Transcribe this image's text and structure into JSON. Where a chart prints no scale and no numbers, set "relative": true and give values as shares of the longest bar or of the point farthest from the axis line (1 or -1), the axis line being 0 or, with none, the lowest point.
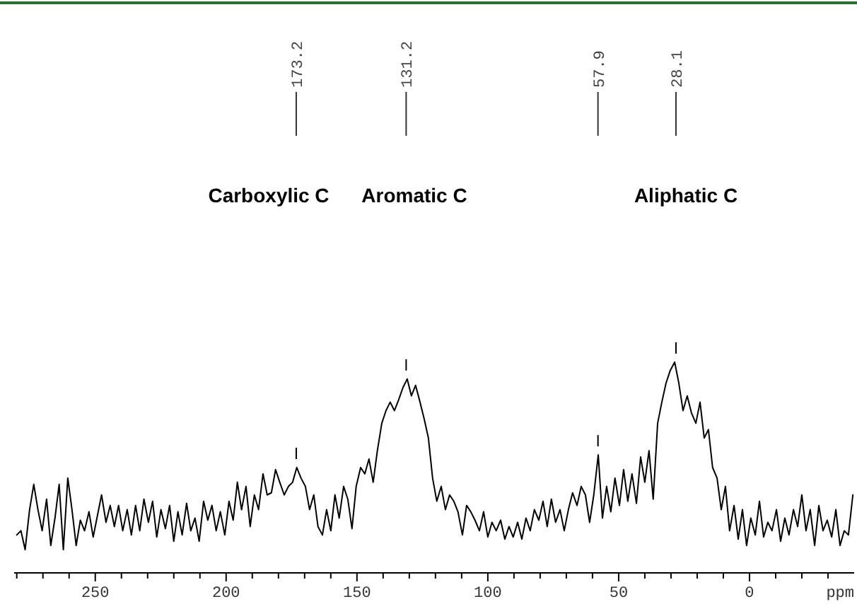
{
  "chart_data": {
    "type": "line",
    "relative": true,
    "xlabel": "ppm",
    "xlim": [
      281,
      -40
    ],
    "xticks": [
      {
        "value": 280,
        "label": null
      },
      {
        "value": 270,
        "label": null
      },
      {
        "value": 260,
        "label": null
      },
      250,
      {
        "value": 240,
        "label": null
      },
      {
        "value": 230,
        "label": null
      },
      {
        "value": 220,
        "label": null
      },
      {
        "value": 210,
        "label": null
      },
      200,
      {
        "value": 190,
        "label": null
      },
      {
        "value": 180,
        "label": null
      },
      {
        "value": 170,
        "label": null
      },
      {
        "value": 160,
        "label": null
      },
      150,
      {
        "value": 140,
        "label": null
      },
      {
        "value": 130,
        "label": null
      },
      {
        "value": 120,
        "label": null
      },
      {
        "value": 110,
        "label": null
      },
      100,
      {
        "value": 90,
        "label": null
      },
      {
        "value": 80,
        "label": null
      },
      {
        "value": 70,
        "label": null
      },
      {
        "value": 60,
        "label": null
      },
      50,
      {
        "value": 40,
        "label": null
      },
      {
        "value": 30,
        "label": null
      },
      {
        "value": 20,
        "label": null
      },
      {
        "value": 10,
        "label": null
      },
      0,
      {
        "value": -10,
        "label": null
      },
      {
        "value": -20,
        "label": null
      },
      {
        "value": -30,
        "label": null
      }
    ],
    "ref_lines": [
      {
        "axis": "x",
        "value": 173.2,
        "label": "173.2"
      },
      {
        "axis": "x",
        "value": 131.2,
        "label": "131.2"
      },
      {
        "axis": "x",
        "value": 57.9,
        "label": "57.9"
      },
      {
        "axis": "x",
        "value": 28.1,
        "label": "28.1"
      }
    ],
    "annotations": [
      "Carboxylic C",
      "Aromatic C",
      "Aliphatic C"
    ],
    "series": [
      {
        "color": "#000000",
        "x": [
          280.0,
          278.4,
          276.8,
          275.1,
          273.5,
          271.9,
          270.3,
          268.6,
          267.0,
          265.4,
          263.8,
          262.2,
          260.5,
          258.9,
          257.3,
          255.7,
          254.1,
          252.4,
          250.8,
          249.2,
          247.6,
          245.9,
          244.3,
          242.7,
          241.1,
          239.5,
          237.8,
          236.2,
          234.6,
          233.0,
          231.4,
          229.7,
          228.1,
          226.5,
          224.9,
          223.2,
          221.6,
          220.0,
          218.4,
          216.8,
          215.1,
          213.5,
          211.9,
          210.3,
          208.6,
          207.0,
          205.4,
          203.8,
          202.2,
          200.5,
          198.9,
          197.3,
          195.7,
          194.1,
          192.4,
          190.8,
          189.2,
          187.6,
          185.9,
          184.3,
          182.7,
          181.1,
          179.5,
          177.8,
          176.2,
          174.6,
          173.0,
          171.4,
          169.7,
          168.1,
          166.5,
          164.9,
          163.2,
          161.6,
          160.0,
          158.4,
          156.8,
          155.1,
          153.5,
          151.9,
          150.3,
          148.6,
          147.0,
          145.4,
          143.8,
          142.2,
          140.5,
          138.9,
          137.3,
          135.7,
          134.1,
          132.4,
          130.8,
          129.2,
          127.6,
          125.9,
          124.3,
          122.7,
          121.1,
          119.5,
          117.8,
          116.2,
          114.6,
          113.0,
          111.4,
          109.7,
          108.1,
          106.5,
          104.9,
          103.2,
          101.6,
          100.0,
          98.4,
          96.8,
          95.1,
          93.5,
          91.9,
          90.3,
          88.6,
          87.0,
          85.4,
          83.8,
          82.2,
          80.5,
          78.9,
          77.3,
          75.7,
          74.1,
          72.4,
          70.8,
          69.2,
          67.6,
          65.9,
          64.3,
          62.7,
          61.1,
          59.5,
          57.8,
          56.2,
          54.6,
          53.0,
          51.4,
          49.7,
          48.1,
          46.5,
          44.9,
          43.2,
          41.6,
          40.0,
          38.4,
          36.8,
          35.1,
          33.5,
          31.9,
          30.3,
          28.6,
          27.0,
          25.4,
          23.8,
          22.2,
          20.5,
          18.9,
          17.3,
          15.7,
          14.1,
          12.4,
          10.8,
          9.2,
          7.6,
          5.9,
          4.3,
          2.7,
          1.1,
          -0.5,
          -2.2,
          -3.8,
          -5.4,
          -7.0,
          -8.6,
          -10.3,
          -11.9,
          -13.5,
          -15.1,
          -16.8,
          -18.4,
          -20.0,
          -21.6,
          -23.2,
          -24.9,
          -26.5,
          -28.1,
          -29.7,
          -31.4,
          -33.0,
          -34.6,
          -36.2,
          -37.8,
          -39.5
        ],
        "values": [
          0.18,
          0.2,
          0.11,
          0.3,
          0.42,
          0.3,
          0.2,
          0.35,
          0.13,
          0.26,
          0.42,
          0.11,
          0.45,
          0.3,
          0.13,
          0.25,
          0.2,
          0.29,
          0.17,
          0.27,
          0.37,
          0.24,
          0.32,
          0.22,
          0.32,
          0.2,
          0.3,
          0.18,
          0.32,
          0.2,
          0.35,
          0.24,
          0.34,
          0.17,
          0.3,
          0.21,
          0.32,
          0.15,
          0.29,
          0.18,
          0.33,
          0.2,
          0.26,
          0.15,
          0.34,
          0.25,
          0.32,
          0.2,
          0.29,
          0.18,
          0.34,
          0.25,
          0.43,
          0.3,
          0.41,
          0.22,
          0.37,
          0.3,
          0.47,
          0.37,
          0.38,
          0.49,
          0.43,
          0.37,
          0.41,
          0.43,
          0.5,
          0.45,
          0.41,
          0.3,
          0.37,
          0.22,
          0.18,
          0.3,
          0.2,
          0.37,
          0.26,
          0.41,
          0.35,
          0.21,
          0.41,
          0.5,
          0.47,
          0.54,
          0.43,
          0.58,
          0.71,
          0.77,
          0.81,
          0.77,
          0.82,
          0.88,
          0.92,
          0.84,
          0.89,
          0.81,
          0.73,
          0.64,
          0.45,
          0.34,
          0.41,
          0.3,
          0.37,
          0.34,
          0.29,
          0.18,
          0.32,
          0.29,
          0.25,
          0.2,
          0.29,
          0.17,
          0.24,
          0.2,
          0.25,
          0.16,
          0.22,
          0.17,
          0.24,
          0.16,
          0.26,
          0.2,
          0.3,
          0.25,
          0.34,
          0.22,
          0.35,
          0.24,
          0.3,
          0.2,
          0.3,
          0.38,
          0.32,
          0.41,
          0.37,
          0.24,
          0.37,
          0.56,
          0.26,
          0.41,
          0.29,
          0.45,
          0.32,
          0.49,
          0.34,
          0.47,
          0.33,
          0.55,
          0.43,
          0.58,
          0.35,
          0.71,
          0.81,
          0.9,
          0.96,
          1.0,
          0.9,
          0.77,
          0.84,
          0.76,
          0.71,
          0.81,
          0.64,
          0.68,
          0.5,
          0.45,
          0.3,
          0.41,
          0.2,
          0.32,
          0.16,
          0.3,
          0.13,
          0.26,
          0.18,
          0.34,
          0.17,
          0.24,
          0.2,
          0.3,
          0.15,
          0.26,
          0.18,
          0.3,
          0.22,
          0.37,
          0.2,
          0.3,
          0.13,
          0.32,
          0.2,
          0.25,
          0.17,
          0.3,
          0.13,
          0.2,
          0.18,
          0.37
        ]
      }
    ]
  }
}
